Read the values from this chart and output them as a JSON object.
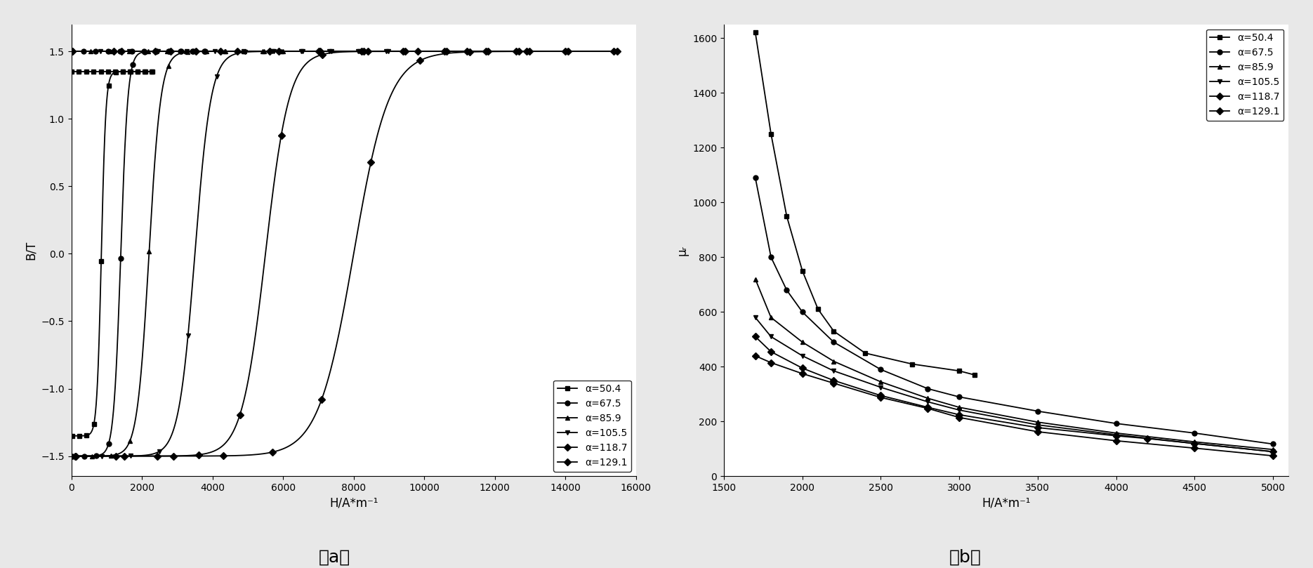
{
  "fig_bg": "#e8e8e8",
  "ax_bg": "#ffffff",
  "plot_a": {
    "xlabel": "H/A*m⁻¹",
    "ylabel": "B/T",
    "xlim": [
      0,
      16000
    ],
    "ylim": [
      -1.65,
      1.7
    ],
    "xticks": [
      0,
      2000,
      4000,
      6000,
      8000,
      10000,
      12000,
      14000,
      16000
    ],
    "yticks": [
      -1.5,
      -1.0,
      -0.5,
      0.0,
      0.5,
      1.0,
      1.5
    ],
    "series": [
      {
        "label": "α=50.4",
        "marker": "s",
        "Bsat": 1.35,
        "Hc": 850,
        "steep": 0.008,
        "Hmax": 2300
      },
      {
        "label": "α=67.5",
        "marker": "o",
        "Bsat": 1.5,
        "Hc": 1400,
        "steep": 0.005,
        "Hmax": 3800
      },
      {
        "label": "α=85.9",
        "marker": "^",
        "Bsat": 1.5,
        "Hc": 2200,
        "steep": 0.003,
        "Hmax": 6000
      },
      {
        "label": "α=105.5",
        "marker": "v",
        "Bsat": 1.5,
        "Hc": 3500,
        "steep": 0.0022,
        "Hmax": 9000
      },
      {
        "label": "α=118.7",
        "marker": "D",
        "Bsat": 1.5,
        "Hc": 5500,
        "steep": 0.0015,
        "Hmax": 13000
      },
      {
        "label": "α=129.1",
        "marker": "D",
        "Bsat": 1.5,
        "Hc": 8000,
        "steep": 0.001,
        "Hmax": 15500
      }
    ]
  },
  "plot_b": {
    "xlabel": "H/A*m⁻¹",
    "ylabel": "μᵣ",
    "xlim": [
      1500,
      5100
    ],
    "ylim": [
      0,
      1650
    ],
    "xticks": [
      1500,
      2000,
      2500,
      3000,
      3500,
      4000,
      4500,
      5000
    ],
    "yticks": [
      0,
      200,
      400,
      600,
      800,
      1000,
      1200,
      1400,
      1600
    ],
    "series": [
      {
        "label": "α=50.4",
        "marker": "s",
        "H": [
          1700,
          1800,
          1900,
          2000,
          2100,
          2200,
          2400,
          2700,
          3000,
          3100
        ],
        "mu": [
          1620,
          1250,
          950,
          750,
          610,
          530,
          450,
          410,
          385,
          370
        ]
      },
      {
        "label": "α=67.5",
        "marker": "o",
        "H": [
          1700,
          1800,
          1900,
          2000,
          2200,
          2500,
          2800,
          3000,
          3500,
          4000,
          4500,
          5000
        ],
        "mu": [
          1090,
          800,
          680,
          600,
          490,
          390,
          320,
          290,
          238,
          193,
          158,
          118
        ]
      },
      {
        "label": "α=85.9",
        "marker": "^",
        "H": [
          1700,
          1800,
          2000,
          2200,
          2500,
          2800,
          3000,
          3500,
          4000,
          4500,
          5000
        ],
        "mu": [
          720,
          580,
          490,
          420,
          345,
          285,
          252,
          198,
          158,
          126,
          98
        ]
      },
      {
        "label": "α=105.5",
        "marker": "v",
        "H": [
          1700,
          1800,
          2000,
          2200,
          2500,
          2800,
          3000,
          3500,
          4000,
          4500,
          5000
        ],
        "mu": [
          580,
          510,
          440,
          385,
          325,
          272,
          242,
          188,
          152,
          120,
          90
        ]
      },
      {
        "label": "α=118.7",
        "marker": "D",
        "H": [
          1700,
          1800,
          2000,
          2200,
          2500,
          2800,
          3000,
          3500,
          4000,
          4200,
          4500,
          5000
        ],
        "mu": [
          510,
          455,
          395,
          350,
          295,
          252,
          225,
          178,
          148,
          138,
          120,
          90
        ]
      },
      {
        "label": "α=129.1",
        "marker": "D",
        "H": [
          1700,
          1800,
          2000,
          2200,
          2500,
          2800,
          3000,
          3500,
          4000,
          4500,
          5000
        ],
        "mu": [
          440,
          415,
          375,
          340,
          288,
          248,
          215,
          163,
          130,
          103,
          75
        ]
      }
    ]
  }
}
